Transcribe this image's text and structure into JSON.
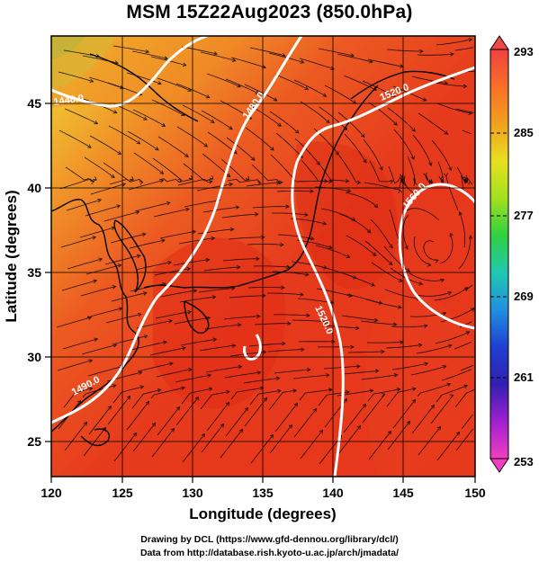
{
  "title": "MSM 15Z22Aug2023 (850.0hPa)",
  "map": {
    "x_label": "Longitude (degrees)",
    "y_label": "Latitude  (degrees)",
    "lon_range": [
      120,
      150
    ],
    "lat_range": [
      22.5,
      47.5
    ],
    "lon_ticks": [
      "120",
      "125",
      "130",
      "135",
      "140",
      "145",
      "150"
    ],
    "lat_ticks": [
      "25",
      "30",
      "35",
      "40",
      "45"
    ],
    "contour_labels": [
      "1440.0",
      "1480.0",
      "1520.0",
      "1560.0",
      "1520.0",
      "1490.0"
    ],
    "palette": {
      "warm": "#e8341c",
      "hot": "#d92a14",
      "orange": "#f07820",
      "yellow_green": "#a8e030",
      "contour": "#ffffff",
      "stream": "#000000"
    }
  },
  "colorbar": {
    "ticks": [
      "293",
      "285",
      "277",
      "269",
      "261",
      "253"
    ],
    "colors": [
      "#f04040",
      "#f87028",
      "#f0a020",
      "#e8e020",
      "#a0e020",
      "#30d040",
      "#20c8b0",
      "#2090e0",
      "#2040d0",
      "#3020b0",
      "#a020d0",
      "#f040c0"
    ]
  },
  "credits": {
    "line1": "Drawing by DCL (https://www.gfd-dennou.org/library/dcl/)",
    "line2": "Data from http://database.rish.kyoto-u.ac.jp/arch/jmadata/"
  }
}
